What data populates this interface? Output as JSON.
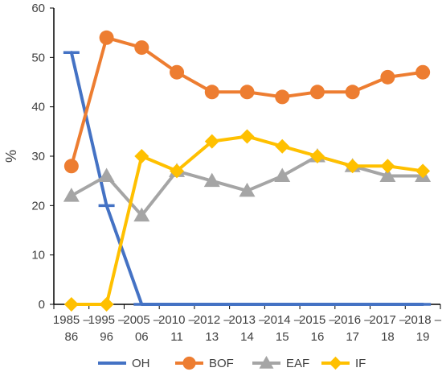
{
  "chart_data": {
    "type": "line",
    "title": "",
    "xlabel": "",
    "ylabel": "%",
    "ylim": [
      0,
      60
    ],
    "yticks": [
      0,
      10,
      20,
      30,
      40,
      50,
      60
    ],
    "grid": false,
    "legend_position": "bottom",
    "categories": [
      [
        "1985 –",
        "86"
      ],
      [
        "1995 –",
        "96"
      ],
      [
        "2005 –",
        "06"
      ],
      [
        "2010 –",
        "11"
      ],
      [
        "2012 –",
        "13"
      ],
      [
        "2013 –",
        "14"
      ],
      [
        "2014 –",
        "15"
      ],
      [
        "2015 –",
        "16"
      ],
      [
        "2016 –",
        "17"
      ],
      [
        "2017 –",
        "18"
      ],
      [
        "2018 –",
        "19"
      ]
    ],
    "series": [
      {
        "name": "OH",
        "color": "#4472C4",
        "marker": "dash",
        "values": [
          51,
          20,
          0,
          0,
          0,
          0,
          0,
          0,
          0,
          0,
          0
        ]
      },
      {
        "name": "BOF",
        "color": "#ED7D31",
        "marker": "circle",
        "values": [
          28,
          54,
          52,
          47,
          43,
          43,
          42,
          43,
          43,
          46,
          47
        ]
      },
      {
        "name": "EAF",
        "color": "#A5A5A5",
        "marker": "triangle",
        "values": [
          22,
          26,
          18,
          27,
          25,
          23,
          26,
          30,
          28,
          26,
          26
        ]
      },
      {
        "name": "IF",
        "color": "#FFC000",
        "marker": "diamond",
        "values": [
          0,
          0,
          30,
          27,
          33,
          34,
          32,
          30,
          28,
          28,
          27
        ]
      }
    ]
  }
}
